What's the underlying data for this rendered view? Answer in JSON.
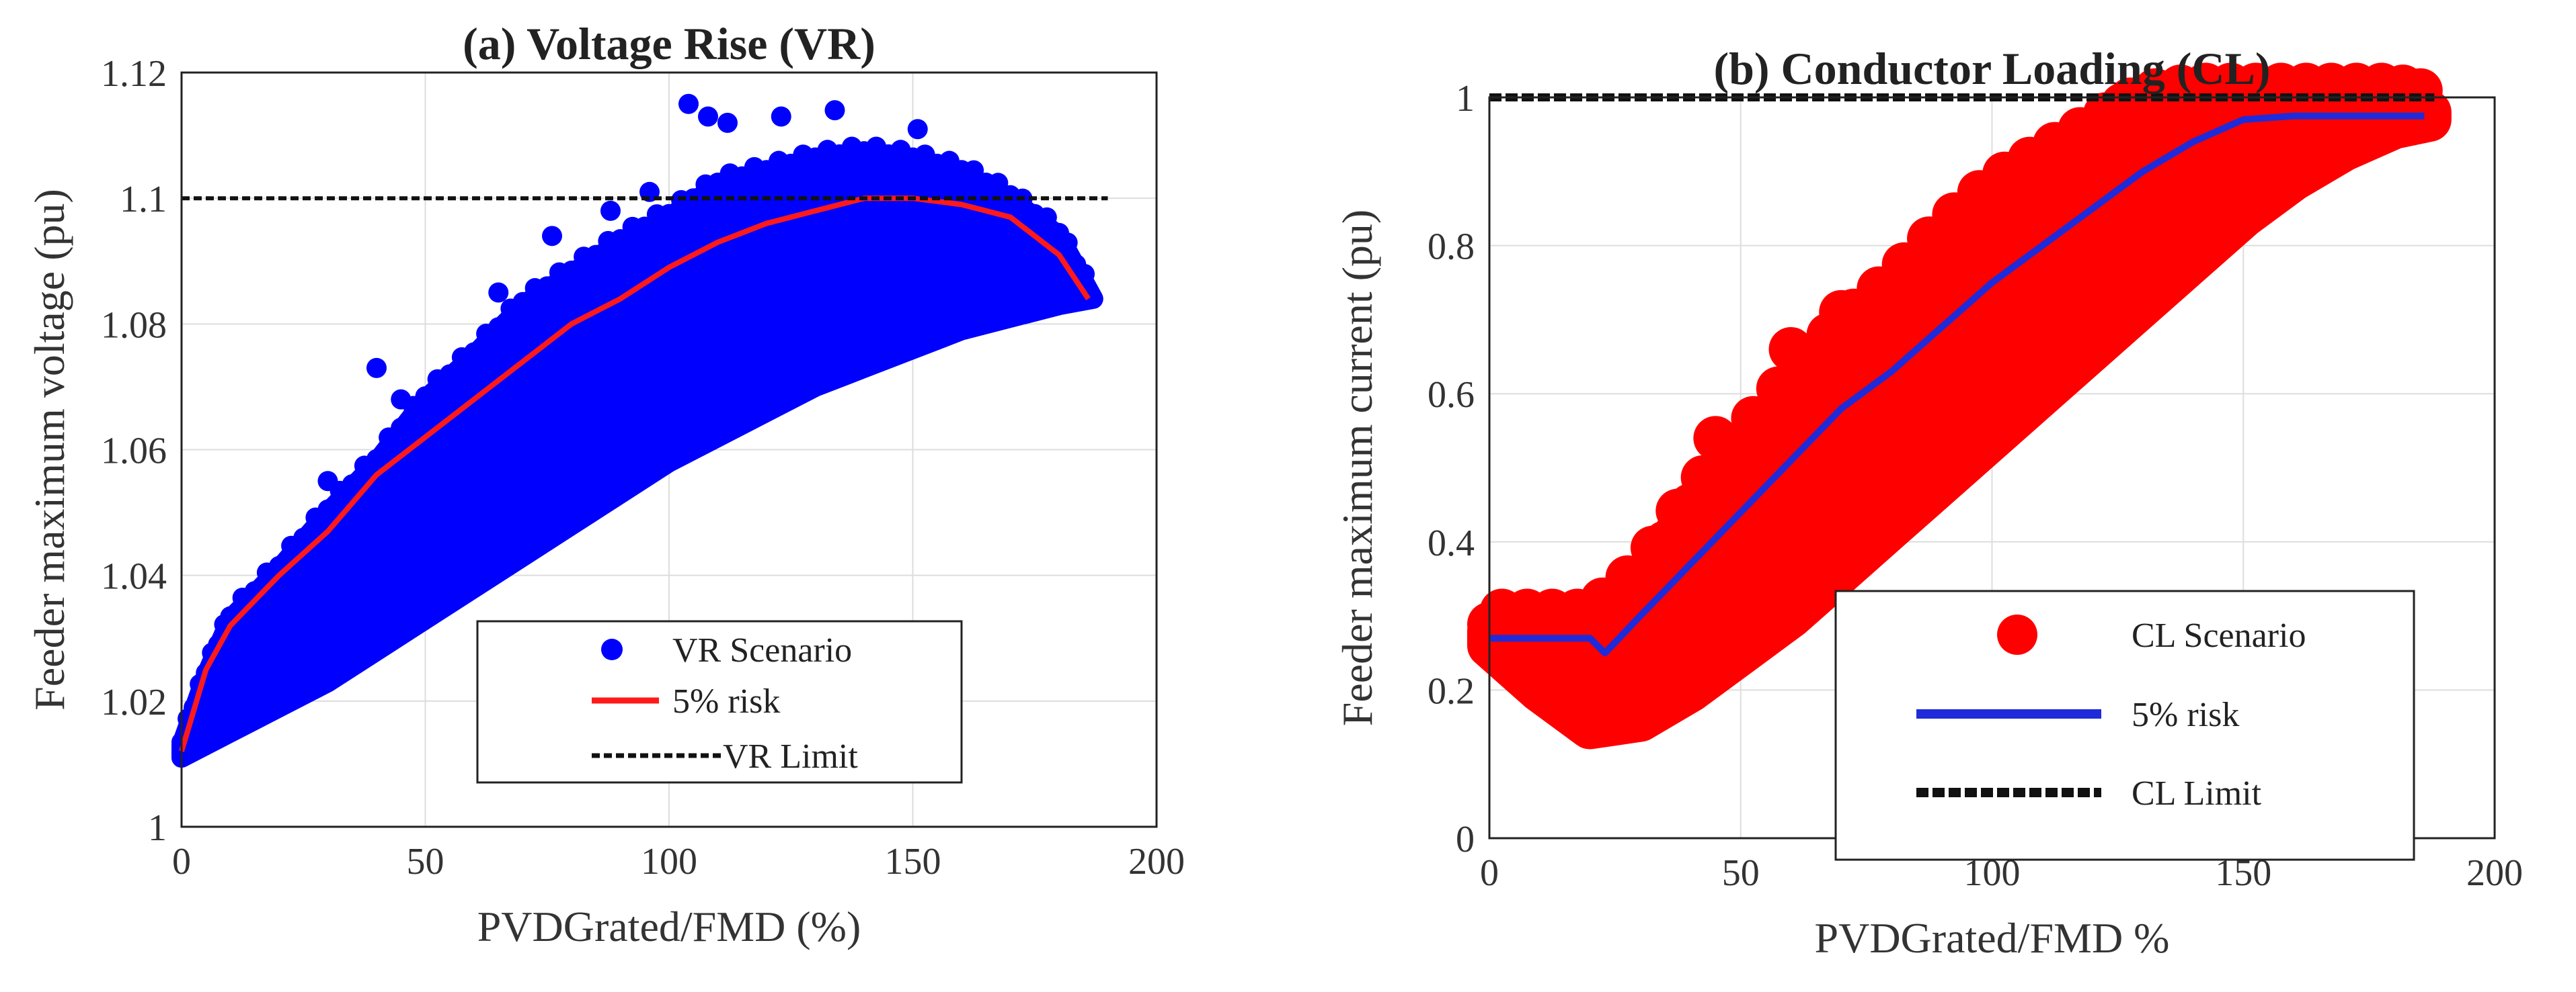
{
  "chart_data": [
    {
      "type": "scatter",
      "title": "(a) Voltage Rise (VR)",
      "xlabel": "PVDGrated/FMD (%)",
      "ylabel": "Feeder maximum voltage (pu)",
      "xlim": [
        0,
        200
      ],
      "ylim": [
        1.0,
        1.12
      ],
      "xticks": [
        0,
        50,
        100,
        150,
        200
      ],
      "yticks": [
        1.0,
        1.02,
        1.04,
        1.06,
        1.08,
        1.1,
        1.12
      ],
      "ytick_labels": [
        "1",
        "1.02",
        "1.04",
        "1.06",
        "1.08",
        "1.1",
        "1.12"
      ],
      "grid": true,
      "legend_position": "bottom-right",
      "series": [
        {
          "name": "VR Scenario",
          "kind": "scatter",
          "color": "#0000ff",
          "band_x": [
            0,
            5,
            10,
            20,
            30,
            40,
            50,
            60,
            70,
            80,
            90,
            100,
            110,
            120,
            130,
            140,
            150,
            160,
            170,
            180,
            187
          ],
          "band_upper": [
            1.013,
            1.024,
            1.033,
            1.041,
            1.05,
            1.058,
            1.068,
            1.075,
            1.083,
            1.088,
            1.093,
            1.097,
            1.102,
            1.104,
            1.106,
            1.107,
            1.106,
            1.104,
            1.1,
            1.094,
            1.084
          ],
          "band_lower": [
            1.011,
            1.013,
            1.015,
            1.019,
            1.023,
            1.028,
            1.033,
            1.038,
            1.043,
            1.048,
            1.053,
            1.058,
            1.062,
            1.066,
            1.07,
            1.073,
            1.076,
            1.079,
            1.081,
            1.083,
            1.084
          ],
          "outliers": [
            [
              104,
              1.115
            ],
            [
              108,
              1.113
            ],
            [
              112,
              1.112
            ],
            [
              123,
              1.113
            ],
            [
              134,
              1.114
            ],
            [
              151,
              1.111
            ],
            [
              88,
              1.098
            ],
            [
              65,
              1.085
            ],
            [
              40,
              1.073
            ],
            [
              76,
              1.094
            ],
            [
              30,
              1.055
            ],
            [
              45,
              1.068
            ],
            [
              96,
              1.101
            ]
          ]
        },
        {
          "name": "5% risk",
          "kind": "line",
          "color": "#ff1a1a",
          "x": [
            0,
            5,
            10,
            20,
            30,
            40,
            50,
            60,
            70,
            80,
            90,
            100,
            110,
            120,
            130,
            140,
            150,
            160,
            170,
            180,
            186
          ],
          "y": [
            1.012,
            1.025,
            1.032,
            1.04,
            1.047,
            1.056,
            1.062,
            1.068,
            1.074,
            1.08,
            1.084,
            1.089,
            1.093,
            1.096,
            1.098,
            1.1,
            1.1,
            1.099,
            1.097,
            1.091,
            1.084
          ]
        },
        {
          "name": "VR Limit",
          "kind": "line",
          "style": "dashed",
          "color": "#111111",
          "x": [
            0,
            190
          ],
          "y": [
            1.1,
            1.1
          ]
        }
      ]
    },
    {
      "type": "scatter",
      "title": "(b) Conductor Loading (CL)",
      "xlabel": "PVDGrated/FMD %",
      "ylabel": "Feeder maximum current (pu)",
      "xlim": [
        0,
        200
      ],
      "ylim": [
        0,
        1.0
      ],
      "xticks": [
        0,
        50,
        100,
        150,
        200
      ],
      "yticks": [
        0,
        0.2,
        0.4,
        0.6,
        0.8,
        1.0
      ],
      "ytick_labels": [
        "0",
        "0.2",
        "0.4",
        "0.6",
        "0.8",
        "1"
      ],
      "grid": true,
      "legend_position": "bottom-right",
      "series": [
        {
          "name": "CL Scenario",
          "kind": "scatter",
          "color": "#ff0000",
          "band_x": [
            0,
            10,
            20,
            30,
            40,
            50,
            60,
            70,
            80,
            90,
            100,
            110,
            120,
            130,
            140,
            150,
            160,
            170,
            180,
            187
          ],
          "band_upper": [
            0.28,
            0.28,
            0.28,
            0.34,
            0.44,
            0.52,
            0.6,
            0.67,
            0.73,
            0.8,
            0.86,
            0.9,
            0.94,
            0.98,
            0.99,
            0.99,
            0.99,
            0.99,
            0.99,
            0.98
          ],
          "band_lower": [
            0.26,
            0.2,
            0.15,
            0.16,
            0.2,
            0.25,
            0.3,
            0.36,
            0.42,
            0.48,
            0.54,
            0.6,
            0.66,
            0.72,
            0.78,
            0.84,
            0.89,
            0.93,
            0.96,
            0.97
          ],
          "outliers": [
            [
              70,
              0.71
            ],
            [
              88,
              0.77
            ],
            [
              95,
              0.83
            ],
            [
              105,
              0.88
            ],
            [
              60,
              0.66
            ],
            [
              45,
              0.54
            ],
            [
              126,
              0.99
            ],
            [
              132,
              0.98
            ]
          ]
        },
        {
          "name": "5% risk",
          "kind": "line",
          "color": "#1f2bd9",
          "x": [
            0,
            10,
            20,
            23,
            30,
            40,
            50,
            60,
            70,
            80,
            90,
            100,
            110,
            120,
            130,
            140,
            150,
            160,
            170,
            180,
            186
          ],
          "y": [
            0.27,
            0.27,
            0.27,
            0.25,
            0.3,
            0.37,
            0.44,
            0.51,
            0.58,
            0.63,
            0.69,
            0.75,
            0.8,
            0.85,
            0.9,
            0.94,
            0.97,
            0.975,
            0.975,
            0.975,
            0.975
          ]
        },
        {
          "name": "CL Limit",
          "kind": "line",
          "style": "dashed",
          "color": "#111111",
          "x": [
            0,
            188
          ],
          "y": [
            1.0,
            1.0
          ]
        }
      ]
    }
  ]
}
